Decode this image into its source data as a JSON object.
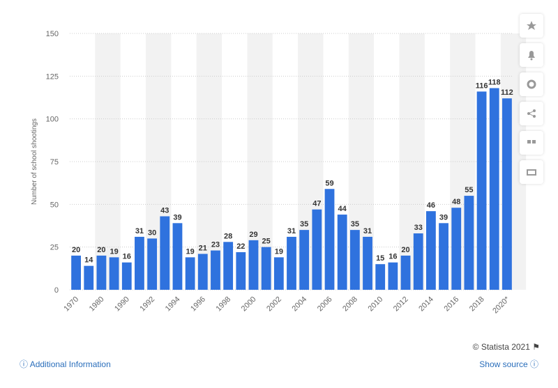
{
  "chart_data": {
    "type": "bar",
    "y_label": "Number of school shootings",
    "categories": [
      "1970",
      null,
      "1980",
      null,
      "1990",
      null,
      "1992",
      null,
      "1994",
      null,
      "1996",
      null,
      "1998",
      null,
      "2000",
      null,
      "2002",
      null,
      "2004",
      null,
      "2006",
      null,
      "2008",
      null,
      "2010",
      null,
      "2012",
      null,
      "2014",
      null,
      "2016",
      null,
      "2018",
      null,
      "2020*"
    ],
    "values": [
      20,
      14,
      20,
      19,
      16,
      31,
      30,
      43,
      39,
      19,
      21,
      23,
      28,
      22,
      29,
      25,
      19,
      31,
      35,
      47,
      59,
      44,
      35,
      31,
      15,
      16,
      20,
      33,
      46,
      39,
      48,
      55,
      116,
      118,
      112
    ],
    "color": "#2f72de",
    "ylim": [
      0,
      150
    ],
    "yticks": [
      0,
      25,
      50,
      75,
      100,
      125,
      150
    ],
    "grid": true
  },
  "footer": {
    "copyright": "© Statista 2021",
    "info": "Additional Information",
    "source": "Show source"
  }
}
